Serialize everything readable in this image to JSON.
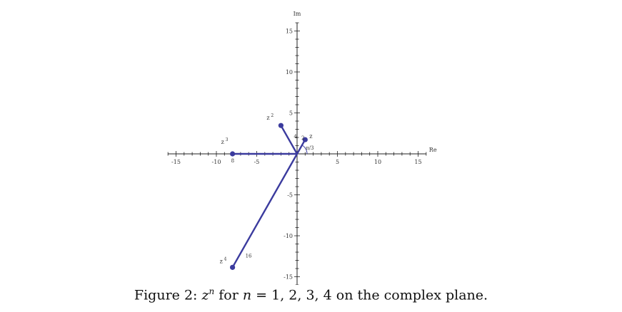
{
  "figure": {
    "caption": {
      "prefix": "Figure 2: ",
      "var_z": "z",
      "sup_n": "n",
      "mid": " for ",
      "var_n": "n",
      "rest": " = 1, 2, 3, 4 on the complex plane."
    }
  },
  "chart_data": {
    "type": "scatter",
    "x_axis_label": "Re",
    "y_axis_label": "Im",
    "xlim": [
      -16,
      16
    ],
    "ylim": [
      -16,
      16
    ],
    "x_ticks": [
      -15,
      -10,
      -5,
      5,
      10,
      15
    ],
    "y_ticks": [
      -15,
      -10,
      -5,
      5,
      10,
      15
    ],
    "x_tick_labels": [
      "-15",
      "-10",
      "-5",
      "5",
      "10",
      "15"
    ],
    "y_tick_labels": [
      "-15",
      "-10",
      "-5",
      "5",
      "10",
      "15"
    ],
    "angle_label": "π/3",
    "points": [
      {
        "name": "z",
        "base": "z",
        "power": "",
        "x": 1.0,
        "y": 1.732,
        "modulus_label": "2"
      },
      {
        "name": "z2",
        "base": "z",
        "power": "2",
        "x": -2.0,
        "y": 3.464,
        "modulus_label": "4"
      },
      {
        "name": "z3",
        "base": "z",
        "power": "3",
        "x": -8.0,
        "y": 0.0,
        "modulus_label": "8"
      },
      {
        "name": "z4",
        "base": "z",
        "power": "4",
        "x": -8.0,
        "y": -13.856,
        "modulus_label": "16"
      }
    ],
    "color": "#3b3b9e"
  }
}
